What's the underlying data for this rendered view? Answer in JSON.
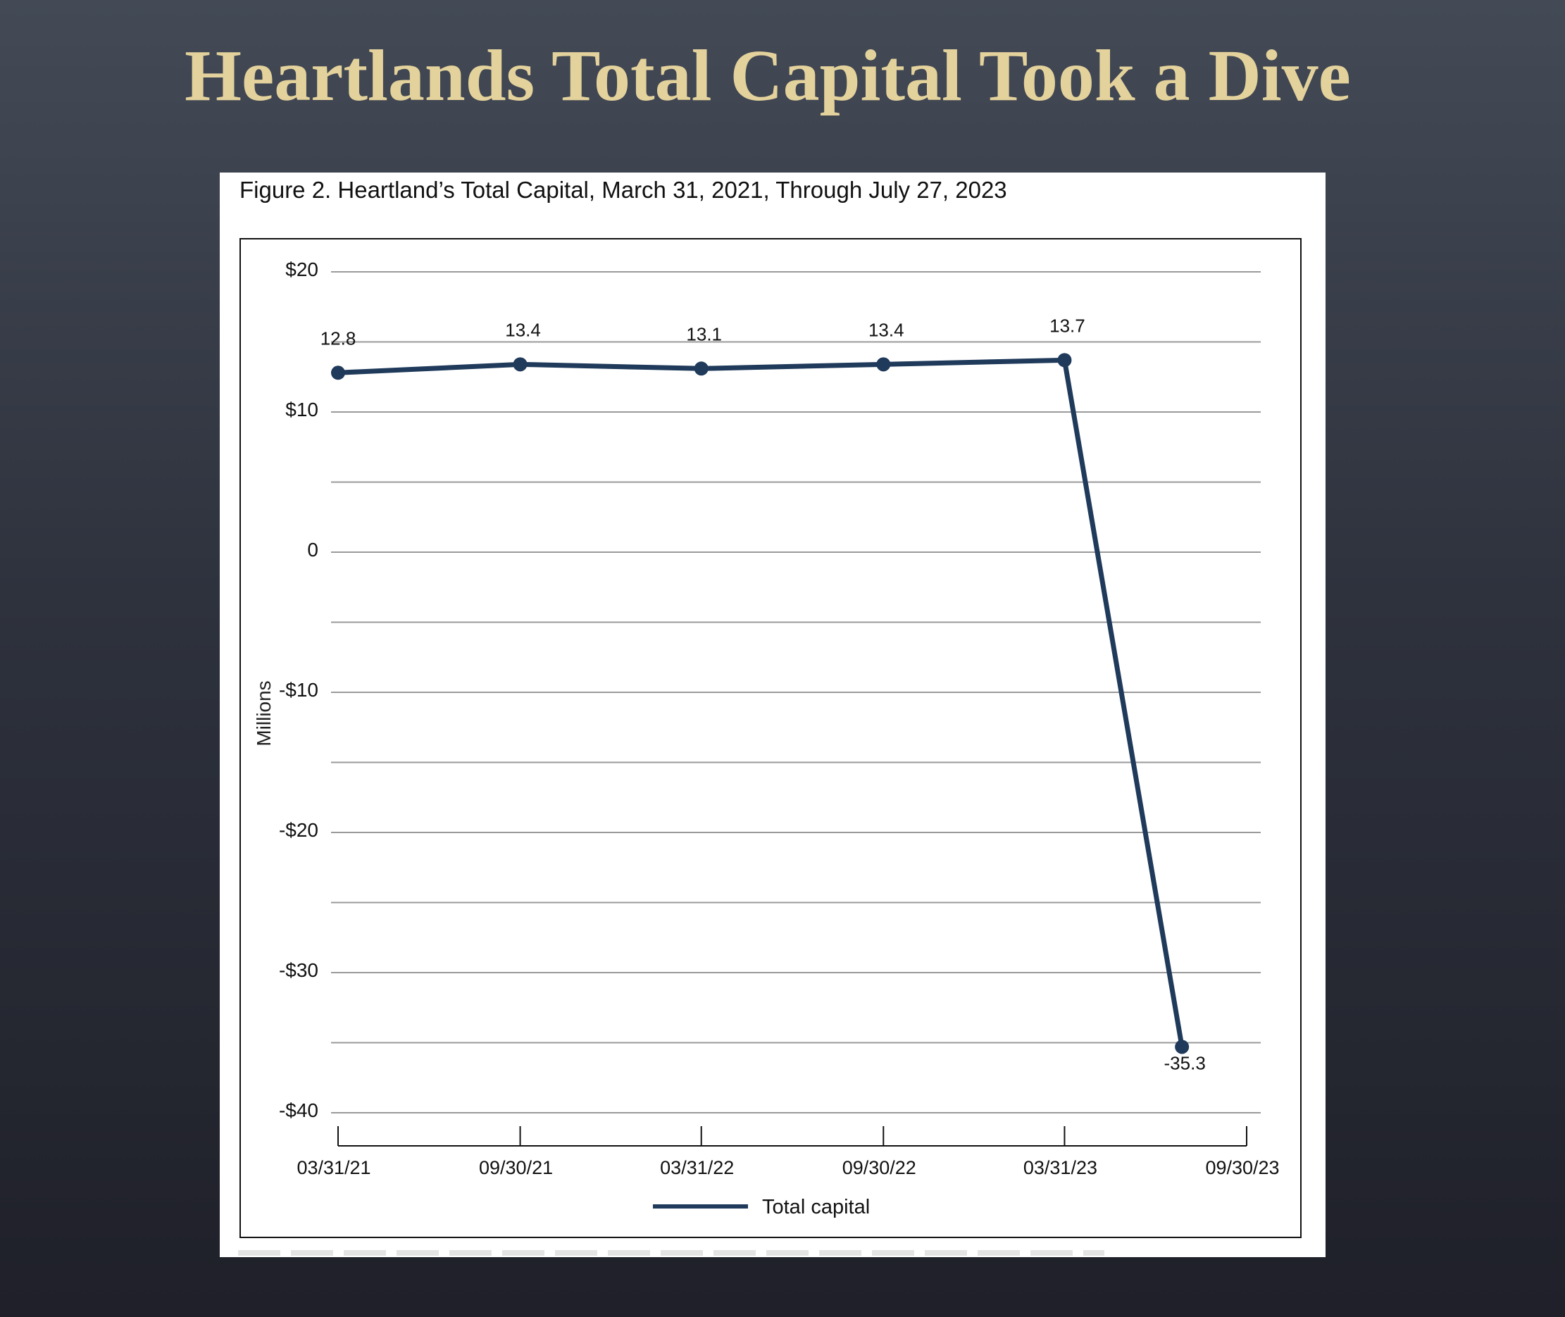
{
  "slide": {
    "title": "Heartlands Total Capital Took a Dive"
  },
  "figure": {
    "caption": "Figure 2. Heartland’s Total Capital, March 31, 2021, Through July 27, 2023"
  },
  "colors": {
    "series": "#1f3a5a",
    "title": "#e4d29c",
    "gridline": "#9a9a9a"
  },
  "chart_data": {
    "type": "line",
    "title": "Figure 2. Heartland’s Total Capital, March 31, 2021, Through July 27, 2023",
    "xlabel": "",
    "ylabel": "Millions",
    "ylim": [
      -40,
      20
    ],
    "grid": true,
    "gridline_step": 5,
    "y_ticks": [
      {
        "value": 20,
        "label": "$20"
      },
      {
        "value": 10,
        "label": "$10"
      },
      {
        "value": 0,
        "label": "0"
      },
      {
        "value": -10,
        "label": "-$10"
      },
      {
        "value": -20,
        "label": "-$20"
      },
      {
        "value": -30,
        "label": "-$30"
      },
      {
        "value": -40,
        "label": "-$40"
      }
    ],
    "x_ticks": [
      "03/31/21",
      "09/30/21",
      "03/31/22",
      "09/30/22",
      "03/31/23",
      "09/30/23"
    ],
    "series": [
      {
        "name": "Total capital",
        "points": [
          {
            "x": "03/31/21",
            "y": 12.8,
            "label": "12.8"
          },
          {
            "x": "09/30/21",
            "y": 13.4,
            "label": "13.4"
          },
          {
            "x": "03/31/22",
            "y": 13.1,
            "label": "13.1"
          },
          {
            "x": "09/30/22",
            "y": 13.4,
            "label": "13.4"
          },
          {
            "x": "03/31/23",
            "y": 13.7,
            "label": "13.7"
          },
          {
            "x": "07/27/23",
            "y": -35.3,
            "label": "-35.3"
          }
        ]
      }
    ],
    "legend": {
      "position": "bottom-center",
      "entries": [
        "Total capital"
      ]
    }
  }
}
